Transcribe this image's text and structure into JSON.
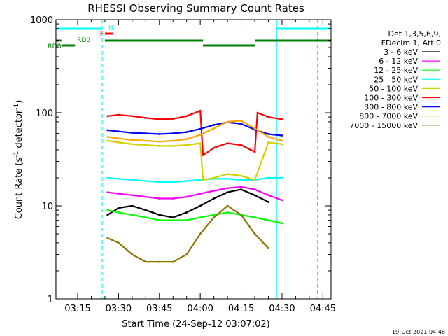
{
  "chart_data": {
    "type": "line",
    "title": "RHESSI Observing Summary Count Rates",
    "xlabel": "Start Time (24-Sep-12 03:07:02)",
    "ylabel_main": "Count Rate (s",
    "ylabel_sup": "-1",
    "ylabel_rest": " detector",
    "ylabel_end": ")",
    "y_scale": "log",
    "ylim": [
      1,
      1000
    ],
    "y_ticks": [
      {
        "value": 1,
        "label": "1"
      },
      {
        "value": 10,
        "label": "10"
      },
      {
        "value": 100,
        "label": "100"
      },
      {
        "value": 1000,
        "label": "1000"
      }
    ],
    "xlim": [
      "03:07:02",
      "04:48:00"
    ],
    "x_ticks": [
      "03:15",
      "03:30",
      "03:45",
      "04:00",
      "04:15",
      "04:30",
      "04:45"
    ],
    "legend_header": [
      "Det 1,3,5,6,9,",
      "FDecim 1, Att 0"
    ],
    "legend_position": "right",
    "series": [
      {
        "name": "3 - 6 keV",
        "color": "#000000",
        "x": [
          "03:26",
          "03:30",
          "03:35",
          "03:40",
          "03:45",
          "03:50",
          "03:55",
          "04:00",
          "04:05",
          "04:10",
          "04:15",
          "04:20",
          "04:25"
        ],
        "values": [
          8,
          9.5,
          10,
          9,
          8,
          7.5,
          8.5,
          10,
          12,
          14,
          15,
          13,
          11
        ]
      },
      {
        "name": "6 - 12 keV",
        "color": "#ff00ff",
        "x": [
          "03:26",
          "03:30",
          "03:35",
          "03:40",
          "03:45",
          "03:50",
          "03:55",
          "04:00",
          "04:05",
          "04:10",
          "04:15",
          "04:20",
          "04:25",
          "04:30"
        ],
        "values": [
          14,
          13.5,
          13,
          12.5,
          12,
          12,
          12.5,
          13.5,
          14.5,
          15.5,
          16,
          15,
          13,
          11.5
        ]
      },
      {
        "name": "12 - 25 keV",
        "color": "#00ff00",
        "x": [
          "03:26",
          "03:30",
          "03:35",
          "03:40",
          "03:45",
          "03:50",
          "03:55",
          "04:00",
          "04:05",
          "04:10",
          "04:15",
          "04:20",
          "04:25",
          "04:30"
        ],
        "values": [
          9,
          8.5,
          8,
          7.5,
          7,
          7,
          7,
          7.5,
          8,
          8.5,
          8,
          7.5,
          7,
          6.5
        ]
      },
      {
        "name": "25 - 50 keV",
        "color": "#00ffff",
        "x": [
          "03:26",
          "03:30",
          "03:35",
          "03:40",
          "03:45",
          "03:50",
          "03:55",
          "04:00",
          "04:05",
          "04:10",
          "04:15",
          "04:20",
          "04:25",
          "04:30"
        ],
        "values": [
          20,
          19.5,
          19,
          18.5,
          18,
          18,
          18.5,
          19,
          19.5,
          19.5,
          19,
          19,
          20,
          20
        ]
      },
      {
        "name": "50 - 100 keV",
        "color": "#d2d200",
        "x": [
          "03:26",
          "03:30",
          "03:35",
          "03:40",
          "03:45",
          "03:50",
          "03:55",
          "04:00",
          "04:01",
          "04:05",
          "04:10",
          "04:15",
          "04:20",
          "04:25",
          "04:30"
        ],
        "values": [
          50,
          48,
          46,
          45,
          44,
          44,
          45,
          47,
          19,
          20,
          22,
          21,
          19,
          48,
          46
        ]
      },
      {
        "name": "100 - 300 keV",
        "color": "#ff0000",
        "x": [
          "03:26",
          "03:30",
          "03:35",
          "03:40",
          "03:45",
          "03:50",
          "03:55",
          "04:00",
          "04:01",
          "04:05",
          "04:10",
          "04:15",
          "04:20",
          "04:21",
          "04:25",
          "04:30"
        ],
        "values": [
          92,
          95,
          92,
          88,
          85,
          86,
          92,
          105,
          35,
          42,
          47,
          45,
          38,
          100,
          90,
          85
        ]
      },
      {
        "name": "300 - 800 keV",
        "color": "#0000ff",
        "x": [
          "03:26",
          "03:30",
          "03:35",
          "03:40",
          "03:45",
          "03:50",
          "03:55",
          "04:00",
          "04:05",
          "04:10",
          "04:15",
          "04:20",
          "04:25",
          "04:30"
        ],
        "values": [
          65,
          63,
          61,
          60,
          59,
          60,
          62,
          67,
          74,
          79,
          76,
          66,
          59,
          57
        ]
      },
      {
        "name": "800 - 7000 keV",
        "color": "#ffa500",
        "x": [
          "03:26",
          "03:30",
          "03:35",
          "03:40",
          "03:45",
          "03:50",
          "03:55",
          "04:00",
          "04:05",
          "04:10",
          "04:15",
          "04:20",
          "04:25",
          "04:30"
        ],
        "values": [
          55,
          53,
          51,
          50,
          49,
          50,
          52,
          58,
          68,
          80,
          82,
          68,
          55,
          50
        ]
      },
      {
        "name": "7000 - 15000 keV",
        "color": "#8b7500",
        "x": [
          "03:26",
          "03:30",
          "03:35",
          "03:40",
          "03:45",
          "03:50",
          "03:55",
          "04:00",
          "04:05",
          "04:10",
          "04:15",
          "04:20",
          "04:25"
        ],
        "values": [
          4.5,
          4,
          3,
          2.5,
          2.5,
          2.5,
          3,
          5,
          7.5,
          10,
          8,
          5,
          3.5
        ]
      }
    ],
    "status_bars": [
      {
        "label": "N",
        "color": "#00ffff",
        "x": [
          "03:07",
          "03:24"
        ],
        "level": "top"
      },
      {
        "label": "N",
        "color": "#00ffff",
        "x": [
          "04:28",
          "04:48"
        ],
        "level": "top"
      },
      {
        "label": "F",
        "color": "#ff0000",
        "x": [
          "03:25",
          "03:28"
        ],
        "level": "second"
      },
      {
        "label": "RD0",
        "color": "#008000",
        "x": [
          "03:07",
          "03:09"
        ],
        "level": "third"
      },
      {
        "label": "RD0",
        "color": "#008000",
        "x": [
          "03:25",
          "04:01"
        ],
        "level": "third"
      },
      {
        "label": "RD0",
        "color": "#008000",
        "x": [
          "04:20",
          "04:48"
        ],
        "level": "third"
      },
      {
        "label": "RDB",
        "color": "#008000",
        "x": [
          "03:09",
          "03:14"
        ],
        "level": "fourth"
      },
      {
        "label": "RDB",
        "color": "#008000",
        "x": [
          "04:01",
          "04:20"
        ],
        "level": "fourth"
      }
    ],
    "vertical_lines": [
      {
        "x": "03:07",
        "color": "#00ffff",
        "style": "solid"
      },
      {
        "x": "03:24",
        "color": "#00ffff",
        "style": "dashed"
      },
      {
        "x": "04:28",
        "color": "#00ffff",
        "style": "solid"
      },
      {
        "x": "04:43",
        "color": "#00ffff",
        "style": "dashed"
      }
    ],
    "grid": false
  },
  "footer_stamp": "19-Oct-2021 04:48"
}
